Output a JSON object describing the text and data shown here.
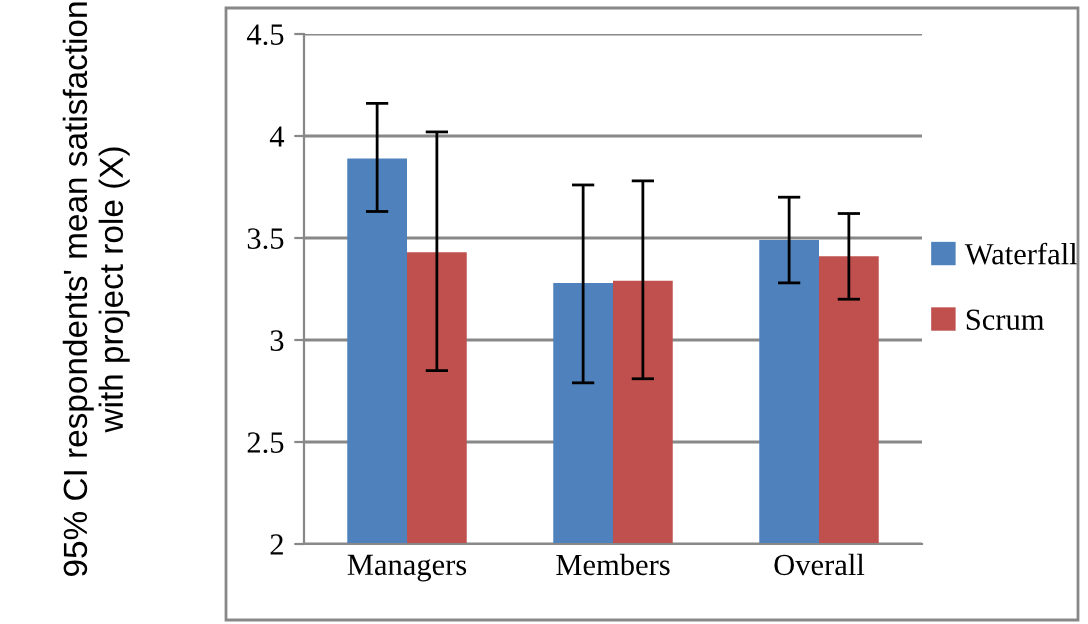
{
  "chart_data": {
    "type": "bar",
    "ylabel": "95% CI respondents' mean satisfaction with project role (X)",
    "categories": [
      "Managers",
      "Members",
      "Overall"
    ],
    "series": [
      {
        "name": "Waterfall",
        "color": "#4f81bd",
        "values": [
          3.89,
          3.28,
          3.49
        ],
        "errors": [
          [
            3.63,
            4.16
          ],
          [
            2.79,
            3.76
          ],
          [
            3.28,
            3.7
          ]
        ]
      },
      {
        "name": "Scrum",
        "color": "#c0504d",
        "values": [
          3.43,
          3.29,
          3.41
        ],
        "errors": [
          [
            2.85,
            4.02
          ],
          [
            2.81,
            3.78
          ],
          [
            3.2,
            3.62
          ]
        ]
      }
    ],
    "ylim": [
      2,
      4.5
    ],
    "yticks": [
      2,
      2.5,
      3,
      3.5,
      4,
      4.5
    ],
    "grid": "y",
    "legend": "right"
  }
}
